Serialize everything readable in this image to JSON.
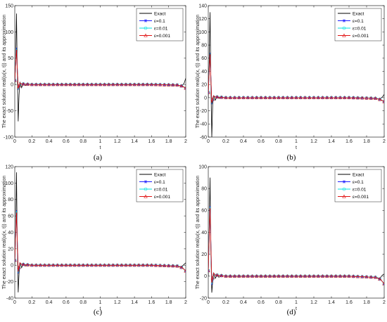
{
  "chart_data": [
    {
      "type": "line",
      "caption": "(a)",
      "xlabel": "t",
      "ylabel": "The exact solution real(u(x, t)) and its approximation",
      "xlim": [
        0,
        2
      ],
      "ylim": [
        -100,
        150
      ],
      "xticks": [
        "0",
        "0.2",
        "0.4",
        "0.6",
        "0.8",
        "1",
        "1.2",
        "1.4",
        "1.6",
        "1.8",
        "2"
      ],
      "yticks": [
        "-100",
        "-50",
        "0",
        "50",
        "100",
        "150"
      ],
      "legend_position": "top-right",
      "legend": [
        "Exact",
        "ε=0.1",
        "ε=0.01",
        "ε=0.001"
      ],
      "series": [
        {
          "name": "Exact",
          "color": "#000000",
          "x": [
            0,
            0.01,
            0.02,
            0.03,
            0.04,
            0.05,
            0.06,
            0.08,
            0.1,
            0.12,
            0.15,
            0.2,
            0.4,
            1.0,
            1.6,
            1.9,
            1.95,
            1.98,
            2.0
          ],
          "y": [
            0,
            40,
            135,
            20,
            -70,
            -20,
            5,
            -6,
            3,
            -2,
            1,
            0,
            0,
            0,
            0,
            -1,
            -3,
            2,
            12
          ]
        },
        {
          "name": "ε=0.1",
          "color": "#1a1aff",
          "x": [
            0,
            0.02,
            0.04,
            0.06,
            0.08,
            0.1,
            0.15,
            0.2,
            0.4,
            1.0,
            1.6,
            1.9,
            1.96,
            2.0
          ],
          "y": [
            8,
            70,
            -10,
            3,
            1,
            1,
            0.5,
            0,
            0,
            0,
            0,
            -1,
            -3,
            -7
          ]
        },
        {
          "name": "ε=0.01",
          "color": "#00e0e0",
          "x": [
            0,
            0.02,
            0.04,
            0.06,
            0.08,
            0.1,
            0.15,
            0.2,
            0.4,
            1.0,
            1.6,
            1.9,
            1.96,
            2.0
          ],
          "y": [
            8,
            68,
            -9,
            3,
            1,
            1,
            0.5,
            0,
            0,
            0,
            0,
            -1,
            -3,
            -7
          ]
        },
        {
          "name": "ε=0.001",
          "color": "#e01010",
          "x": [
            0,
            0.02,
            0.04,
            0.06,
            0.08,
            0.1,
            0.15,
            0.2,
            0.4,
            1.0,
            1.6,
            1.9,
            1.96,
            2.0
          ],
          "y": [
            8,
            66,
            -8,
            3,
            1,
            1,
            0.5,
            0,
            0,
            0,
            0,
            -1,
            -3,
            -7
          ]
        }
      ]
    },
    {
      "type": "line",
      "caption": "(b)",
      "xlabel": "t",
      "ylabel": "The exact solution real(u(x, t)) and its approximation",
      "xlim": [
        0,
        2
      ],
      "ylim": [
        -60,
        140
      ],
      "xticks": [
        "0",
        "0.2",
        "0.4",
        "0.6",
        "0.8",
        "1",
        "1.2",
        "1.4",
        "1.6",
        "1.8",
        "2"
      ],
      "yticks": [
        "-60",
        "-40",
        "-20",
        "0",
        "20",
        "40",
        "60",
        "80",
        "100",
        "120",
        "140"
      ],
      "legend_position": "top-right",
      "legend": [
        "Exact",
        "ε=0.1",
        "ε=0.01",
        "ε=0.001"
      ],
      "series": [
        {
          "name": "Exact",
          "color": "#000000",
          "x": [
            0,
            0.01,
            0.02,
            0.03,
            0.04,
            0.05,
            0.06,
            0.08,
            0.1,
            0.12,
            0.15,
            0.2,
            0.4,
            1.0,
            1.6,
            1.9,
            1.95,
            1.98,
            2.0
          ],
          "y": [
            0,
            50,
            130,
            20,
            -60,
            -10,
            3,
            -4,
            2,
            -1,
            1,
            0,
            0,
            0,
            0,
            -1,
            -2,
            1,
            5
          ]
        },
        {
          "name": "ε=0.1",
          "color": "#1a1aff",
          "x": [
            0,
            0.02,
            0.04,
            0.06,
            0.08,
            0.1,
            0.15,
            0.2,
            0.4,
            1.0,
            1.6,
            1.9,
            1.96,
            2.0
          ],
          "y": [
            8,
            68,
            -10,
            3,
            1,
            1,
            0.5,
            0,
            0,
            0,
            0,
            -1,
            -3,
            -6
          ]
        },
        {
          "name": "ε=0.01",
          "color": "#00e0e0",
          "x": [
            0,
            0.02,
            0.04,
            0.06,
            0.08,
            0.1,
            0.15,
            0.2,
            0.4,
            1.0,
            1.6,
            1.9,
            1.96,
            2.0
          ],
          "y": [
            8,
            67,
            -9,
            3,
            1,
            1,
            0.5,
            0,
            0,
            0,
            0,
            -1,
            -3,
            -6
          ]
        },
        {
          "name": "ε=0.001",
          "color": "#e01010",
          "x": [
            0,
            0.02,
            0.04,
            0.06,
            0.08,
            0.1,
            0.15,
            0.2,
            0.4,
            1.0,
            1.6,
            1.9,
            1.96,
            2.0
          ],
          "y": [
            8,
            66,
            -8,
            3,
            1,
            1,
            0.5,
            0,
            0,
            0,
            0,
            -1,
            -3,
            -6
          ]
        }
      ]
    },
    {
      "type": "line",
      "caption": "(c)",
      "xlabel": "t",
      "ylabel": "The exact solution real(u(x, t)) and its approximation",
      "xlim": [
        0,
        2
      ],
      "ylim": [
        -40,
        120
      ],
      "xticks": [
        "0",
        "0.2",
        "0.4",
        "0.6",
        "0.8",
        "1",
        "1.2",
        "1.4",
        "1.6",
        "1.8",
        "2"
      ],
      "yticks": [
        "-40",
        "-20",
        "0",
        "20",
        "40",
        "60",
        "80",
        "100",
        "120"
      ],
      "legend_position": "top-right",
      "legend": [
        "Exact",
        "ε=0.1",
        "ε=0.01",
        "ε=0.001"
      ],
      "series": [
        {
          "name": "Exact",
          "color": "#000000",
          "x": [
            0,
            0.01,
            0.02,
            0.03,
            0.04,
            0.05,
            0.06,
            0.08,
            0.1,
            0.12,
            0.15,
            0.2,
            0.4,
            1.0,
            1.6,
            1.9,
            1.95,
            1.98,
            2.0
          ],
          "y": [
            0,
            40,
            113,
            20,
            -33,
            -10,
            3,
            -3,
            2,
            -1,
            1,
            0,
            0,
            0,
            0,
            -1,
            -2,
            1,
            3
          ]
        },
        {
          "name": "ε=0.1",
          "color": "#1a1aff",
          "x": [
            0,
            0.02,
            0.04,
            0.06,
            0.08,
            0.1,
            0.15,
            0.2,
            0.4,
            1.0,
            1.6,
            1.9,
            1.96,
            2.0
          ],
          "y": [
            6,
            67,
            -10,
            3,
            1,
            1,
            0.5,
            0,
            0,
            0,
            0,
            -1,
            -3,
            -7
          ]
        },
        {
          "name": "ε=0.01",
          "color": "#00e0e0",
          "x": [
            0,
            0.02,
            0.04,
            0.06,
            0.08,
            0.1,
            0.15,
            0.2,
            0.4,
            1.0,
            1.6,
            1.9,
            1.96,
            2.0
          ],
          "y": [
            6,
            66,
            -9,
            3,
            1,
            1,
            0.5,
            0,
            0,
            0,
            0,
            -1,
            -3,
            -7
          ]
        },
        {
          "name": "ε=0.001",
          "color": "#e01010",
          "x": [
            0,
            0.02,
            0.04,
            0.06,
            0.08,
            0.1,
            0.15,
            0.2,
            0.4,
            1.0,
            1.6,
            1.9,
            1.96,
            2.0
          ],
          "y": [
            6,
            64,
            -8,
            3,
            1,
            1,
            0.5,
            0,
            0,
            0,
            0,
            -1,
            -3,
            -7
          ]
        }
      ]
    },
    {
      "type": "line",
      "caption": "(d)",
      "xlabel": "t",
      "ylabel": "The exact solution real(u(x, t)) and its approximation",
      "xlim": [
        0,
        2
      ],
      "ylim": [
        -20,
        100
      ],
      "xticks": [
        "0",
        "0.2",
        "0.4",
        "0.6",
        "0.8",
        "1",
        "1.2",
        "1.4",
        "1.6",
        "1.8",
        "2"
      ],
      "yticks": [
        "-20",
        "0",
        "20",
        "40",
        "60",
        "80",
        "100"
      ],
      "legend_position": "top-right",
      "legend": [
        "Exact",
        "ε=0.1",
        "ε=0.01",
        "ε=0.001"
      ],
      "series": [
        {
          "name": "Exact",
          "color": "#000000",
          "x": [
            0,
            0.01,
            0.02,
            0.03,
            0.04,
            0.05,
            0.06,
            0.08,
            0.1,
            0.12,
            0.15,
            0.2,
            0.4,
            1.0,
            1.6,
            1.9,
            1.95,
            1.98,
            2.0
          ],
          "y": [
            0,
            40,
            90,
            20,
            -15,
            -5,
            2,
            -2,
            1,
            -1,
            0.5,
            0,
            0,
            0,
            0,
            -1,
            -2,
            1,
            2
          ]
        },
        {
          "name": "ε=0.1",
          "color": "#1a1aff",
          "x": [
            0,
            0.02,
            0.04,
            0.06,
            0.08,
            0.1,
            0.15,
            0.2,
            0.4,
            1.0,
            1.6,
            1.9,
            1.96,
            2.0
          ],
          "y": [
            5,
            64,
            -8,
            3,
            1,
            1,
            0.5,
            0,
            0,
            0,
            0,
            -1,
            -3,
            -7
          ]
        },
        {
          "name": "ε=0.01",
          "color": "#00e0e0",
          "x": [
            0,
            0.02,
            0.04,
            0.06,
            0.08,
            0.1,
            0.15,
            0.2,
            0.4,
            1.0,
            1.6,
            1.9,
            1.96,
            2.0
          ],
          "y": [
            5,
            63,
            -7,
            3,
            1,
            1,
            0.5,
            0,
            0,
            0,
            0,
            -1,
            -3,
            -7
          ]
        },
        {
          "name": "ε=0.001",
          "color": "#e01010",
          "x": [
            0,
            0.02,
            0.04,
            0.06,
            0.08,
            0.1,
            0.15,
            0.2,
            0.4,
            1.0,
            1.6,
            1.9,
            1.96,
            2.0
          ],
          "y": [
            5,
            62,
            -6,
            3,
            1,
            1,
            0.5,
            0,
            0,
            0,
            0,
            -1,
            -3,
            -7
          ]
        }
      ]
    }
  ]
}
